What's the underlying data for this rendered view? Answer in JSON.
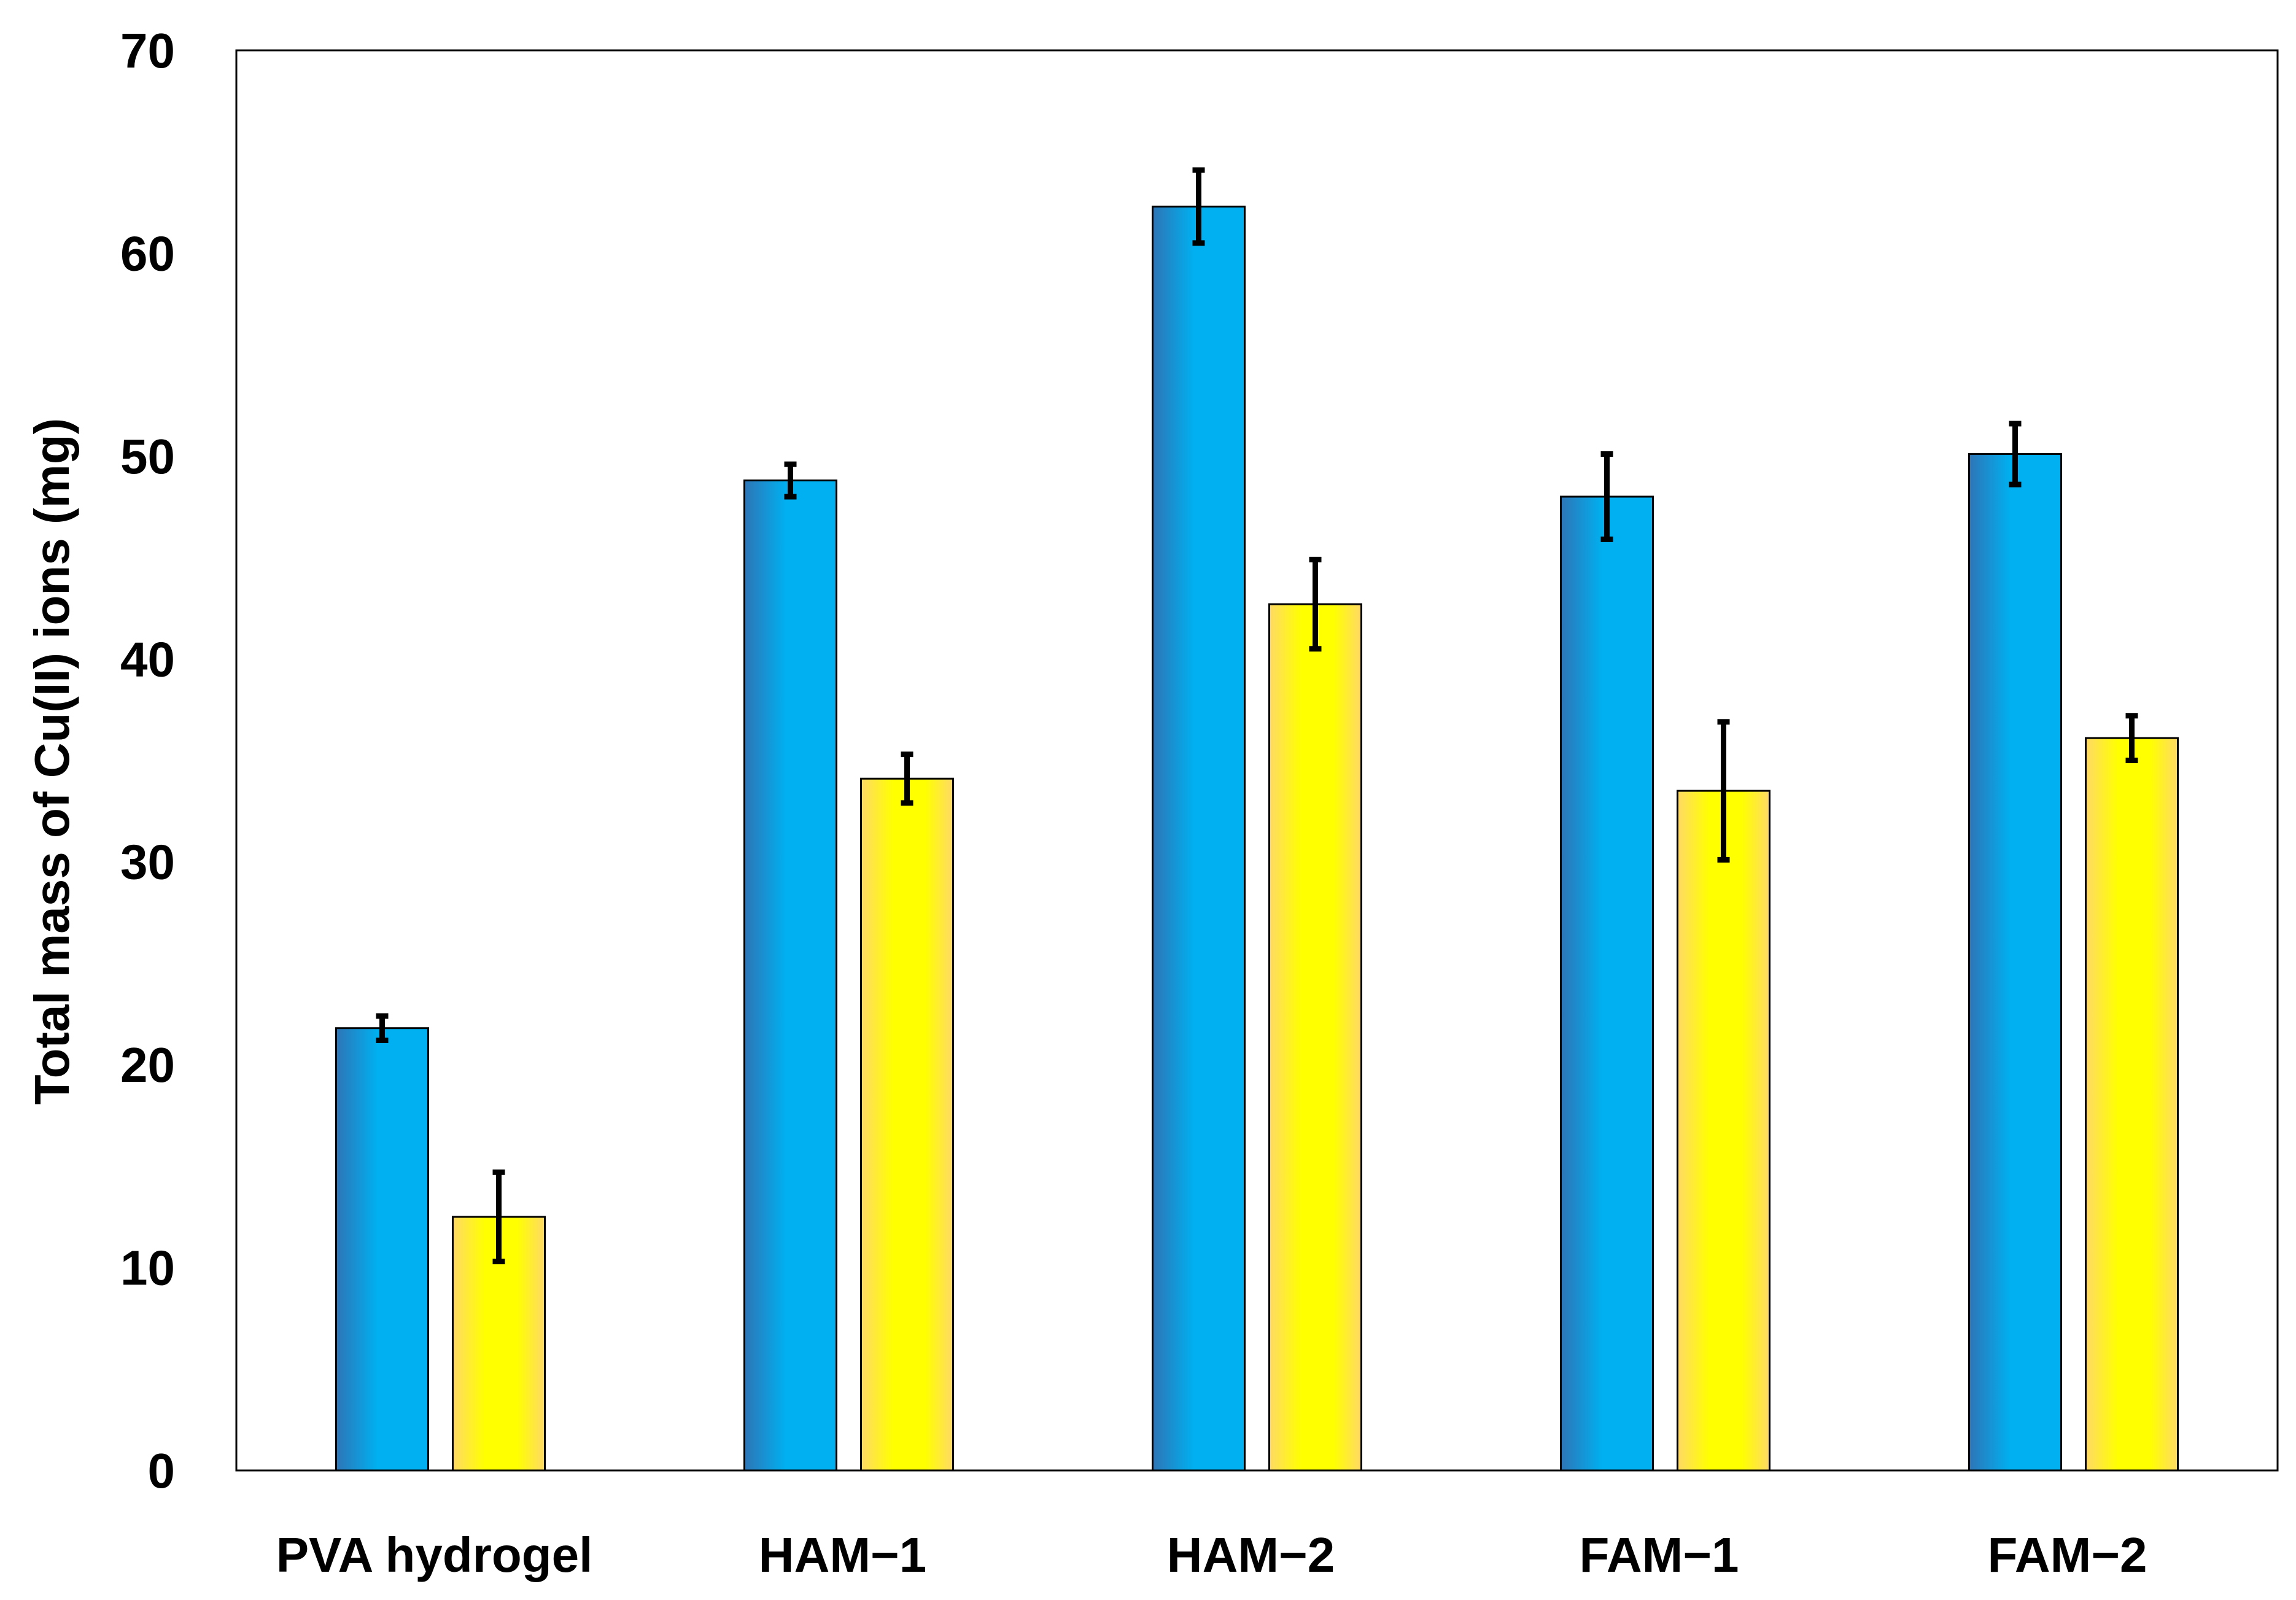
{
  "chart_data": {
    "type": "bar",
    "title": "",
    "xlabel": "",
    "ylabel": "Total mass of Cu(II) ions  (mg)",
    "ylim": [
      0,
      70
    ],
    "yticks": [
      0,
      10,
      20,
      30,
      40,
      50,
      60,
      70
    ],
    "grid": false,
    "legend": "none",
    "categories": [
      "PVA hydrogel",
      "HAM−1",
      "HAM−2",
      "FAM−1",
      "FAM−2"
    ],
    "series": [
      {
        "name": "series-blue",
        "color": "#00B0F0",
        "values": [
          21.8,
          48.8,
          62.3,
          48.0,
          50.1
        ],
        "errors": [
          0.6,
          0.8,
          1.8,
          2.1,
          1.5
        ]
      },
      {
        "name": "series-yellow",
        "color": "#FFFF00",
        "values": [
          12.5,
          34.1,
          42.7,
          33.5,
          36.1
        ],
        "errors": [
          2.2,
          1.2,
          2.2,
          3.4,
          1.1
        ]
      }
    ]
  },
  "colors": {
    "blue_edge": "#2E75B6",
    "blue_center": "#00B0F0",
    "yellow_edge": "#FFD966",
    "yellow_center": "#FFFF00"
  }
}
